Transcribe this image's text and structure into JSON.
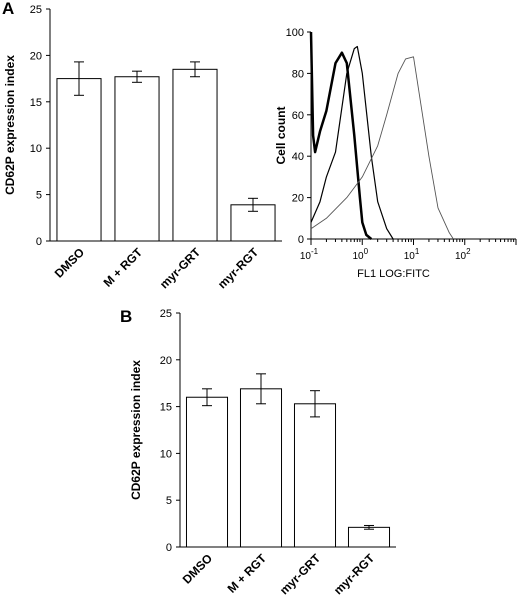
{
  "panel_labels": {
    "a": "A",
    "b": "B"
  },
  "chart_data": [
    {
      "type": "bar",
      "panel": "A",
      "ylabel": "CD62P expression index",
      "ylim": [
        0,
        25
      ],
      "yticks": [
        "0",
        "5",
        "10",
        "15",
        "20",
        "25"
      ],
      "categories": [
        "DMSO",
        "M + RGT",
        "myr-GRT",
        "myr-RGT"
      ],
      "values": [
        17.5,
        17.7,
        18.5,
        3.9
      ],
      "errors": [
        1.8,
        0.6,
        0.8,
        0.7
      ],
      "bar_fill": "#ffffff",
      "bar_stroke": "#000000"
    },
    {
      "type": "line",
      "panel": "A",
      "subtype": "flow-cytometry-histogram",
      "ylabel": "Cell count",
      "xlabel": "FL1 LOG:FITC",
      "ylim": [
        0,
        100
      ],
      "yticks": [
        "0",
        "20",
        "40",
        "60",
        "80",
        "100"
      ],
      "xscale": "log",
      "xlim": [
        0.1,
        1000
      ],
      "xticks": [
        {
          "base": "10",
          "exp": "-1"
        },
        {
          "base": "10",
          "exp": "0"
        },
        {
          "base": "10",
          "exp": "1"
        },
        {
          "base": "10",
          "exp": "2"
        }
      ],
      "series": [
        {
          "x": [
            0.1,
            0.11,
            0.12,
            0.15,
            0.2,
            0.3,
            0.4,
            0.5,
            0.7,
            0.9,
            1.0,
            1.2,
            1.5
          ],
          "y": [
            100,
            50,
            42,
            52,
            62,
            85,
            90,
            85,
            50,
            20,
            8,
            2,
            0
          ]
        },
        {
          "x": [
            0.1,
            0.15,
            0.2,
            0.3,
            0.5,
            0.7,
            0.8,
            1.0,
            1.5,
            2,
            3,
            4
          ],
          "y": [
            8,
            18,
            30,
            42,
            80,
            92,
            93,
            80,
            40,
            18,
            5,
            0
          ]
        },
        {
          "x": [
            0.1,
            0.2,
            0.5,
            1,
            2,
            3,
            5,
            7,
            10,
            15,
            20,
            30,
            50,
            60
          ],
          "y": [
            5,
            10,
            20,
            30,
            45,
            60,
            80,
            87,
            88,
            60,
            40,
            15,
            3,
            0
          ]
        }
      ],
      "series_styles": [
        {
          "color": "#000000",
          "width": 2.5
        },
        {
          "color": "#000000",
          "width": 1.2
        },
        {
          "color": "#555555",
          "width": 0.9
        }
      ]
    },
    {
      "type": "bar",
      "panel": "B",
      "ylabel": "CD62P expression index",
      "ylim": [
        0,
        25
      ],
      "yticks": [
        "0",
        "5",
        "10",
        "15",
        "20",
        "25"
      ],
      "categories": [
        "DMSO",
        "M + RGT",
        "myr-GRT",
        "myr-RGT"
      ],
      "values": [
        16.0,
        16.9,
        15.3,
        2.1
      ],
      "errors": [
        0.9,
        1.6,
        1.4,
        0.2
      ],
      "bar_fill": "#ffffff",
      "bar_stroke": "#000000"
    }
  ]
}
